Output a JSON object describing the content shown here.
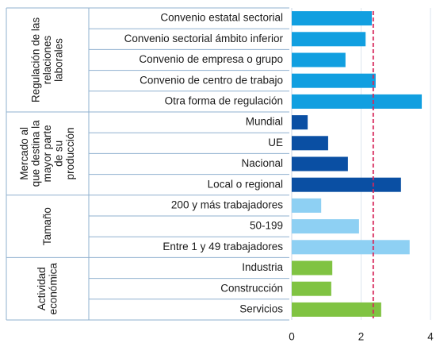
{
  "chart_data": {
    "type": "bar",
    "groups": [
      {
        "label": [
          "Regulación de las",
          "relaciones",
          "laborales"
        ],
        "color": "#119fe0",
        "categories": [
          "Convenio estatal sectorial",
          "Convenio sectorial ámbito inferior",
          "Convenio de empresa o grupo",
          "Convenio de centro de trabajo",
          "Otra forma de regulación"
        ],
        "values": [
          2.31,
          2.13,
          1.55,
          2.42,
          3.75
        ]
      },
      {
        "label": [
          "Mercado al",
          "que destina la",
          "mayor parte",
          "de su",
          "producción"
        ],
        "color": "#0a4fa3",
        "categories": [
          "Mundial",
          "UE",
          "Nacional",
          "Local o regional"
        ],
        "values": [
          0.46,
          1.05,
          1.62,
          3.15
        ]
      },
      {
        "label": [
          "Tamaño"
        ],
        "color": "#8ed0f3",
        "categories": [
          "200 y más trabajadores",
          "50-199",
          "Entre 1 y 49 trabajadores"
        ],
        "values": [
          0.85,
          1.94,
          3.4
        ]
      },
      {
        "label": [
          "Actividad",
          "económica"
        ],
        "color": "#80c342",
        "categories": [
          "Industria",
          "Construcción",
          "Servicios"
        ],
        "values": [
          1.17,
          1.14,
          2.58
        ]
      }
    ],
    "reference_line": {
      "value": 2.35,
      "color": "#d6275a"
    },
    "xlim": [
      0,
      4
    ],
    "xticks": [
      0,
      2,
      4
    ],
    "grid": true
  }
}
